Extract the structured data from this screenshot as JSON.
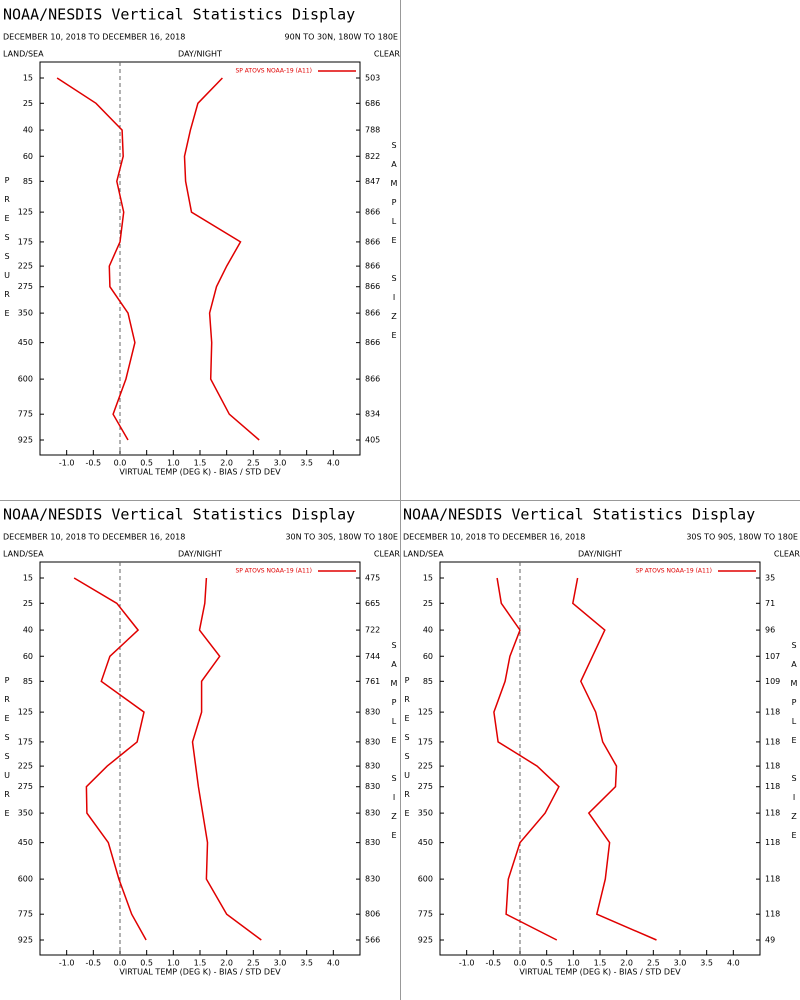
{
  "chart_data": [
    {
      "type": "line",
      "title": "NOAA/NESDIS Vertical Statistics Display",
      "subtitle": "DECEMBER 10, 2018 TO DECEMBER 16, 2018",
      "region": "90N TO 30N, 180W TO 180E",
      "corner_labels": {
        "left": "LAND/SEA",
        "center": "DAY/NIGHT",
        "right": "CLEAR"
      },
      "ylabel": "PRESSURE",
      "y2label": "SAMPLE SIZE",
      "xlabel": "VIRTUAL TEMP (DEG K) - BIAS / STD DEV",
      "xlim": [
        -1.5,
        4.5
      ],
      "xticks": [
        {
          "value": -1,
          "label": "-1.0"
        },
        -0.5,
        {
          "value": 0,
          "label": "0.0"
        },
        0.5,
        {
          "value": 1,
          "label": "1.0"
        },
        1.5,
        {
          "value": 2,
          "label": "2.0"
        },
        2.5,
        {
          "value": 3,
          "label": "3.0"
        },
        3.5,
        {
          "value": 4,
          "label": "4.0"
        }
      ],
      "yticks": [
        15,
        25,
        40,
        60,
        85,
        125,
        175,
        225,
        275,
        350,
        450,
        600,
        775,
        925
      ],
      "sample_size": [
        503,
        686,
        788,
        822,
        847,
        866,
        866,
        866,
        866,
        866,
        866,
        866,
        834,
        405
      ],
      "series": [
        {
          "name": "SP ATOVS NOAA-19 (A11)",
          "color": "#e00000",
          "bias": [
            -1.18,
            -0.45,
            0.04,
            0.06,
            -0.06,
            0.07,
            0.0,
            -0.2,
            -0.19,
            0.15,
            0.28,
            0.11,
            -0.13,
            0.15
          ],
          "std_dev": [
            1.92,
            1.46,
            1.32,
            1.21,
            1.23,
            1.34,
            2.26,
            2.0,
            1.81,
            1.68,
            1.72,
            1.7,
            2.05,
            2.61
          ]
        }
      ]
    },
    {
      "type": "line",
      "title": "NOAA/NESDIS Vertical Statistics Display",
      "subtitle": "DECEMBER 10, 2018 TO DECEMBER 16, 2018",
      "region": "30N TO 30S, 180W TO 180E",
      "corner_labels": {
        "left": "LAND/SEA",
        "center": "DAY/NIGHT",
        "right": "CLEAR"
      },
      "ylabel": "PRESSURE",
      "y2label": "SAMPLE SIZE",
      "xlabel": "VIRTUAL TEMP (DEG K) - BIAS / STD DEV",
      "xlim": [
        -1.5,
        4.5
      ],
      "xticks": [
        {
          "value": -1,
          "label": "-1.0"
        },
        -0.5,
        {
          "value": 0,
          "label": "0.0"
        },
        0.5,
        {
          "value": 1,
          "label": "1.0"
        },
        1.5,
        {
          "value": 2,
          "label": "2.0"
        },
        2.5,
        {
          "value": 3,
          "label": "3.0"
        },
        3.5,
        {
          "value": 4,
          "label": "4.0"
        }
      ],
      "yticks": [
        15,
        25,
        40,
        60,
        85,
        125,
        175,
        225,
        275,
        350,
        450,
        600,
        775,
        925
      ],
      "sample_size": [
        475,
        665,
        722,
        744,
        761,
        830,
        830,
        830,
        830,
        830,
        830,
        830,
        806,
        566
      ],
      "series": [
        {
          "name": "SP ATOVS NOAA-19 (A11)",
          "color": "#e00000",
          "bias": [
            -0.86,
            -0.06,
            0.34,
            -0.19,
            -0.35,
            0.45,
            0.32,
            -0.24,
            -0.63,
            -0.62,
            -0.22,
            -0.02,
            0.22,
            0.49
          ],
          "std_dev": [
            1.62,
            1.59,
            1.49,
            1.87,
            1.53,
            1.53,
            1.36,
            1.42,
            1.47,
            1.55,
            1.64,
            1.62,
            2.0,
            2.65
          ]
        }
      ]
    },
    {
      "type": "line",
      "title": "NOAA/NESDIS Vertical Statistics Display",
      "subtitle": "DECEMBER 10, 2018 TO DECEMBER 16, 2018",
      "region": "30S TO 90S, 180W TO 180E",
      "corner_labels": {
        "left": "LAND/SEA",
        "center": "DAY/NIGHT",
        "right": "CLEAR"
      },
      "ylabel": "PRESSURE",
      "y2label": "SAMPLE SIZE",
      "xlabel": "VIRTUAL TEMP (DEG K) - BIAS / STD DEV",
      "xlim": [
        -1.5,
        4.5
      ],
      "xticks": [
        {
          "value": -1,
          "label": "-1.0"
        },
        -0.5,
        {
          "value": 0,
          "label": "0.0"
        },
        0.5,
        {
          "value": 1,
          "label": "1.0"
        },
        1.5,
        {
          "value": 2,
          "label": "2.0"
        },
        2.5,
        {
          "value": 3,
          "label": "3.0"
        },
        3.5,
        {
          "value": 4,
          "label": "4.0"
        }
      ],
      "yticks": [
        15,
        25,
        40,
        60,
        85,
        125,
        175,
        225,
        275,
        350,
        450,
        600,
        775,
        925
      ],
      "sample_size": [
        35,
        71,
        96,
        107,
        109,
        118,
        118,
        118,
        118,
        118,
        118,
        118,
        118,
        49
      ],
      "series": [
        {
          "name": "SP ATOVS NOAA-19 (A11)",
          "color": "#e00000",
          "bias": [
            -0.43,
            -0.35,
            0.0,
            -0.19,
            -0.28,
            -0.49,
            -0.41,
            0.32,
            0.73,
            0.47,
            0.0,
            -0.22,
            -0.26,
            0.69
          ],
          "std_dev": [
            1.08,
            0.99,
            1.59,
            1.36,
            1.14,
            1.42,
            1.55,
            1.81,
            1.79,
            1.29,
            1.68,
            1.6,
            1.44,
            2.56
          ]
        }
      ]
    }
  ]
}
